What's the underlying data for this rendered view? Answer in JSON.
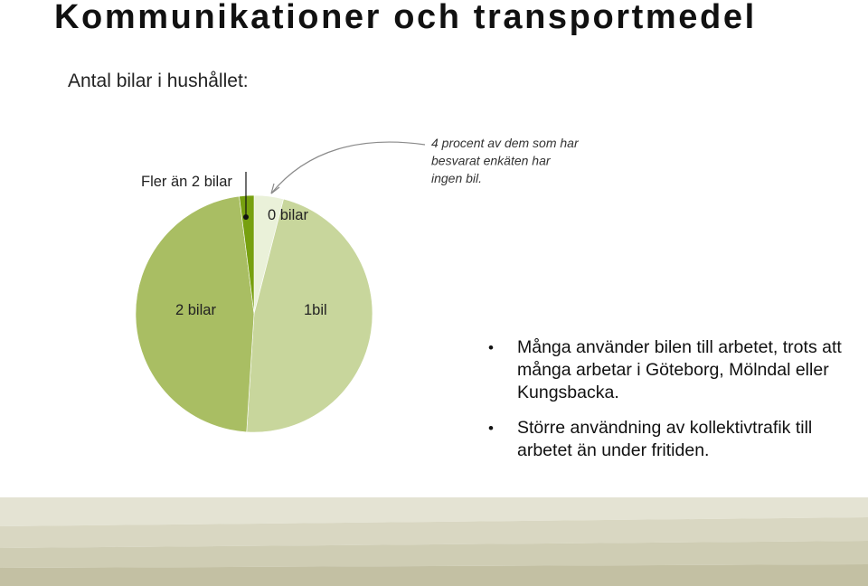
{
  "slide": {
    "title": "Kommunikationer och transportmedel",
    "subtitle": "Antal bilar i hushållet:"
  },
  "chart_data": {
    "type": "pie",
    "labels": [
      "0 bilar",
      "1bil",
      "2 bilar",
      "Fler än 2 bilar"
    ],
    "values": [
      4,
      47,
      47,
      2
    ],
    "colors": [
      "#eaf1d9",
      "#c8d69c",
      "#a9be63",
      "#77a00f"
    ],
    "annotation": "4 procent av dem som har besvarat enkäten har ingen bil."
  },
  "bullets": [
    "Många använder bilen till arbetet, trots att många arbetar i Göteborg, Mölndal eller Kungsbacka.",
    "Större användning av kollektivtrafik till arbetet än under fritiden."
  ],
  "footer_colors": [
    "#e4e3d3",
    "#d9d7c2",
    "#cfcdb4",
    "#c3c0a3"
  ]
}
